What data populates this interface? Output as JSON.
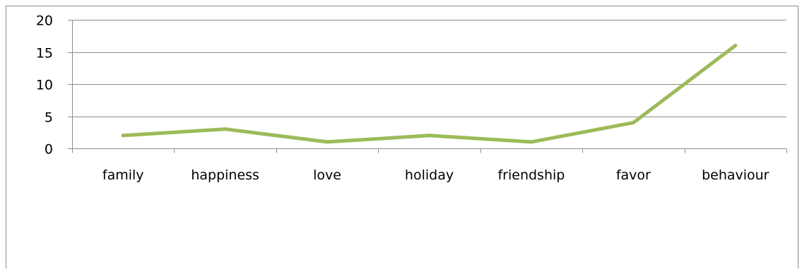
{
  "chart_data": {
    "type": "line",
    "title": "",
    "xlabel": "",
    "ylabel": "",
    "categories": [
      "family",
      "happiness",
      "love",
      "holiday",
      "friendship",
      "favor",
      "behaviour"
    ],
    "series": [
      {
        "values": [
          2,
          3,
          1,
          2,
          1,
          4,
          16
        ],
        "color": "#9bbb59"
      }
    ],
    "ylim": [
      0,
      20
    ],
    "yticks": [
      0,
      5,
      10,
      15,
      20
    ],
    "grid": true,
    "legend": "none",
    "colors": {
      "line": "#9bbb59",
      "grid": "#8c8c8c",
      "axis": "#8c8c8c"
    }
  }
}
